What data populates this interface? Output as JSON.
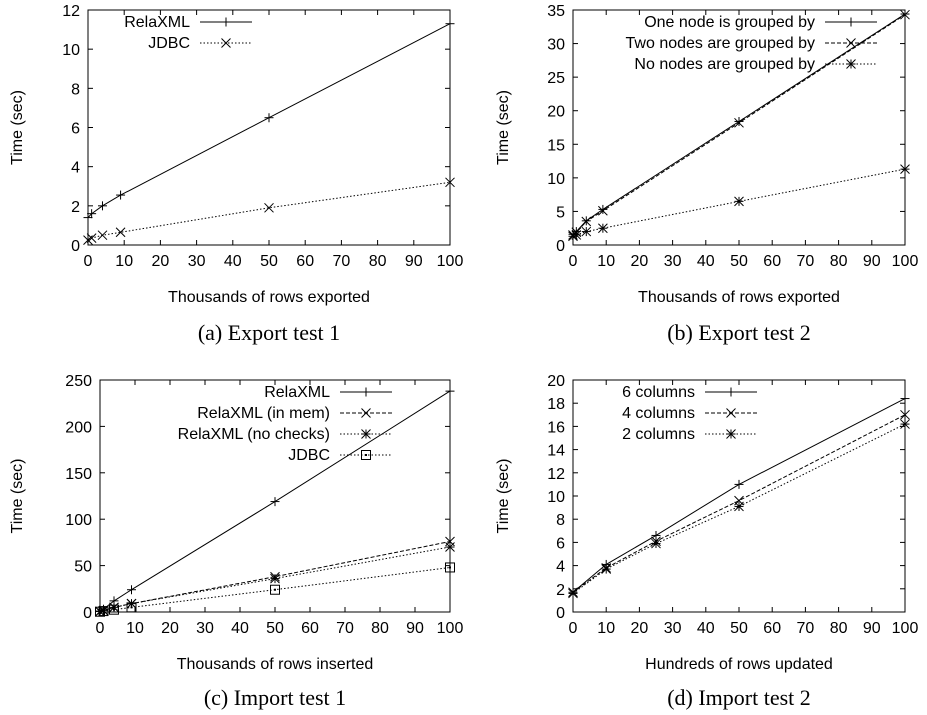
{
  "chart_data": [
    {
      "type": "line",
      "caption": "(a) Export test 1",
      "xlabel": "Thousands of rows exported",
      "ylabel": "Time (sec)",
      "xlim": [
        0,
        100
      ],
      "ylim": [
        0,
        12
      ],
      "xticks": [
        0,
        10,
        20,
        30,
        40,
        50,
        60,
        70,
        80,
        90,
        100
      ],
      "yticks": [
        0,
        2,
        4,
        6,
        8,
        10,
        12
      ],
      "legend_position": "top-left",
      "series": [
        {
          "name": "RelaXML",
          "marker": "plus",
          "dash": "solid",
          "x": [
            0,
            1,
            4,
            9,
            50,
            100
          ],
          "y": [
            1.4,
            1.6,
            2.0,
            2.55,
            6.5,
            11.3
          ]
        },
        {
          "name": "JDBC",
          "marker": "cross",
          "dash": "dotted",
          "x": [
            0,
            1,
            4,
            9,
            50,
            100
          ],
          "y": [
            0.25,
            0.35,
            0.5,
            0.65,
            1.9,
            3.2
          ]
        }
      ]
    },
    {
      "type": "line",
      "caption": "(b) Export test 2",
      "xlabel": "Thousands of rows exported",
      "ylabel": "Time (sec)",
      "xlim": [
        0,
        100
      ],
      "ylim": [
        0,
        35
      ],
      "xticks": [
        0,
        10,
        20,
        30,
        40,
        50,
        60,
        70,
        80,
        90,
        100
      ],
      "yticks": [
        0,
        5,
        10,
        15,
        20,
        25,
        30,
        35
      ],
      "legend_position": "top-right",
      "series": [
        {
          "name": "One node is grouped by",
          "marker": "plus",
          "dash": "solid",
          "x": [
            0,
            1,
            4,
            9,
            50,
            100
          ],
          "y": [
            1.6,
            2.0,
            3.6,
            5.3,
            18.4,
            34.4
          ]
        },
        {
          "name": "Two nodes are grouped by",
          "marker": "cross",
          "dash": "dashed",
          "x": [
            0,
            1,
            4,
            9,
            50,
            100
          ],
          "y": [
            1.5,
            1.9,
            3.5,
            5.1,
            18.2,
            34.3
          ]
        },
        {
          "name": "No nodes are grouped by",
          "marker": "star",
          "dash": "dotted",
          "x": [
            0,
            1,
            4,
            9,
            50,
            100
          ],
          "y": [
            1.3,
            1.5,
            2.0,
            2.5,
            6.5,
            11.3
          ]
        }
      ]
    },
    {
      "type": "line",
      "caption": "(c) Import test 1",
      "xlabel": "Thousands of rows inserted",
      "ylabel": "Time (sec)",
      "xlim": [
        0,
        100
      ],
      "ylim": [
        0,
        250
      ],
      "xticks": [
        0,
        10,
        20,
        30,
        40,
        50,
        60,
        70,
        80,
        90,
        100
      ],
      "yticks": [
        0,
        50,
        100,
        150,
        200,
        250
      ],
      "legend_position": "top-right",
      "series": [
        {
          "name": "RelaXML",
          "marker": "plus",
          "dash": "solid",
          "x": [
            0,
            1,
            4,
            9,
            50,
            100
          ],
          "y": [
            1,
            3,
            12,
            24,
            119,
            238
          ]
        },
        {
          "name": "RelaXML (in mem)",
          "marker": "cross",
          "dash": "dashed",
          "x": [
            0,
            1,
            4,
            9,
            50,
            100
          ],
          "y": [
            0.5,
            1.5,
            5,
            9,
            38,
            76
          ]
        },
        {
          "name": "RelaXML (no checks)",
          "marker": "star",
          "dash": "dotted",
          "x": [
            0,
            1,
            4,
            9,
            50,
            100
          ],
          "y": [
            0.5,
            1.5,
            5,
            9,
            36,
            70
          ]
        },
        {
          "name": "JDBC",
          "marker": "box",
          "dash": "dotted",
          "x": [
            0,
            1,
            4,
            9,
            50,
            100
          ],
          "y": [
            0.3,
            1,
            2.5,
            5,
            24,
            48
          ]
        }
      ]
    },
    {
      "type": "line",
      "caption": "(d) Import test 2",
      "xlabel": "Hundreds of rows updated",
      "ylabel": "Time (sec)",
      "xlim": [
        0,
        100
      ],
      "ylim": [
        0,
        20
      ],
      "xticks": [
        0,
        10,
        20,
        30,
        40,
        50,
        60,
        70,
        80,
        90,
        100
      ],
      "yticks": [
        0,
        2,
        4,
        6,
        8,
        10,
        12,
        14,
        16,
        18,
        20
      ],
      "legend_position": "top-left",
      "series": [
        {
          "name": "6 columns",
          "marker": "plus",
          "dash": "solid",
          "x": [
            0,
            10,
            25,
            50,
            100
          ],
          "y": [
            1.7,
            4.1,
            6.6,
            11.0,
            18.4
          ]
        },
        {
          "name": "4 columns",
          "marker": "cross",
          "dash": "dashed",
          "x": [
            0,
            10,
            25,
            50,
            100
          ],
          "y": [
            1.7,
            3.8,
            6.1,
            9.6,
            17.0
          ]
        },
        {
          "name": "2 columns",
          "marker": "star",
          "dash": "dotted",
          "x": [
            0,
            10,
            25,
            50,
            100
          ],
          "y": [
            1.6,
            3.7,
            5.9,
            9.1,
            16.2
          ]
        }
      ]
    }
  ]
}
